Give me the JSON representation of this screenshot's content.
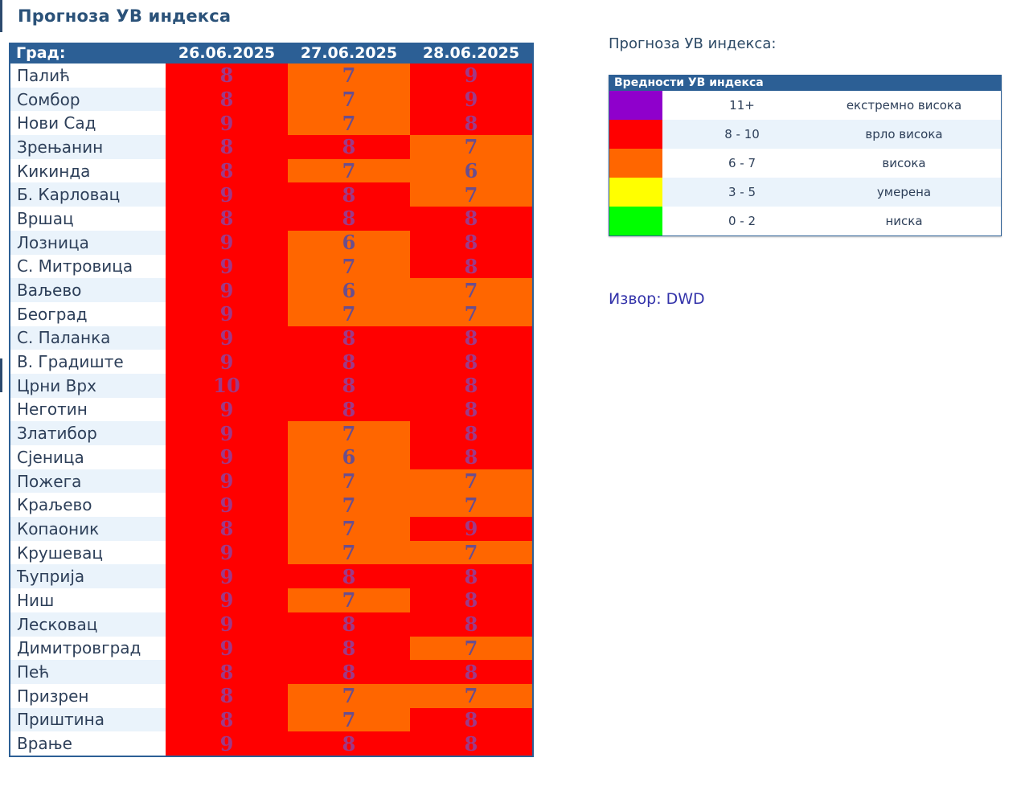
{
  "page_title": "Прогноза УВ индекса",
  "table": {
    "city_header": "Град:",
    "dates": [
      "26.06.2025",
      "27.06.2025",
      "28.06.2025"
    ],
    "rows": [
      {
        "city": "Палић",
        "values": [
          "8",
          "7",
          "9"
        ]
      },
      {
        "city": "Сомбор",
        "values": [
          "8",
          "7",
          "9"
        ]
      },
      {
        "city": "Нови Сад",
        "values": [
          "9",
          "7",
          "8"
        ]
      },
      {
        "city": "Зрењанин",
        "values": [
          "8",
          "8",
          "7"
        ]
      },
      {
        "city": "Кикинда",
        "values": [
          "8",
          "7",
          "6"
        ]
      },
      {
        "city": "Б. Карловац",
        "values": [
          "9",
          "8",
          "7"
        ]
      },
      {
        "city": "Вршац",
        "values": [
          "8",
          "8",
          "8"
        ]
      },
      {
        "city": "Лозница",
        "values": [
          "9",
          "6",
          "8"
        ]
      },
      {
        "city": "С. Митровица",
        "values": [
          "9",
          "7",
          "8"
        ]
      },
      {
        "city": "Ваљево",
        "values": [
          "9",
          "6",
          "7"
        ]
      },
      {
        "city": "Београд",
        "values": [
          "9",
          "7",
          "7"
        ]
      },
      {
        "city": "С. Паланка",
        "values": [
          "9",
          "8",
          "8"
        ]
      },
      {
        "city": "В. Градиште",
        "values": [
          "9",
          "8",
          "8"
        ]
      },
      {
        "city": "Црни Врх",
        "values": [
          "10",
          "8",
          "8"
        ]
      },
      {
        "city": "Неготин",
        "values": [
          "9",
          "8",
          "8"
        ]
      },
      {
        "city": "Златибор",
        "values": [
          "9",
          "7",
          "8"
        ]
      },
      {
        "city": "Сјеница",
        "values": [
          "9",
          "6",
          "8"
        ]
      },
      {
        "city": "Пожега",
        "values": [
          "9",
          "7",
          "7"
        ]
      },
      {
        "city": "Краљево",
        "values": [
          "9",
          "7",
          "7"
        ]
      },
      {
        "city": "Копаоник",
        "values": [
          "8",
          "7",
          "9"
        ]
      },
      {
        "city": "Крушевац",
        "values": [
          "9",
          "7",
          "7"
        ]
      },
      {
        "city": "Ћуприја",
        "values": [
          "9",
          "8",
          "8"
        ]
      },
      {
        "city": "Ниш",
        "values": [
          "9",
          "7",
          "8"
        ]
      },
      {
        "city": "Лесковац",
        "values": [
          "9",
          "8",
          "8"
        ]
      },
      {
        "city": "Димитровград",
        "values": [
          "9",
          "8",
          "7"
        ]
      },
      {
        "city": "Пећ",
        "values": [
          "8",
          "8",
          "8"
        ]
      },
      {
        "city": "Призрен",
        "values": [
          "8",
          "7",
          "7"
        ]
      },
      {
        "city": "Приштина",
        "values": [
          "8",
          "7",
          "8"
        ]
      },
      {
        "city": "Врање",
        "values": [
          "9",
          "8",
          "8"
        ]
      }
    ]
  },
  "legend": {
    "heading": "Прогноза УВ индекса:",
    "table_title": "Вредности УВ индекса",
    "items": [
      {
        "color": "#8f00cc",
        "range": "11+",
        "label": "екстремно висока"
      },
      {
        "color": "#ff0000",
        "range": "8 - 10",
        "label": "врло висока"
      },
      {
        "color": "#ff6600",
        "range": "6 - 7",
        "label": "висока"
      },
      {
        "color": "#ffff00",
        "range": "3 - 5",
        "label": "умерена"
      },
      {
        "color": "#00ff00",
        "range": "0 - 2",
        "label": "ниска"
      }
    ]
  },
  "source": "Извор: DWD"
}
